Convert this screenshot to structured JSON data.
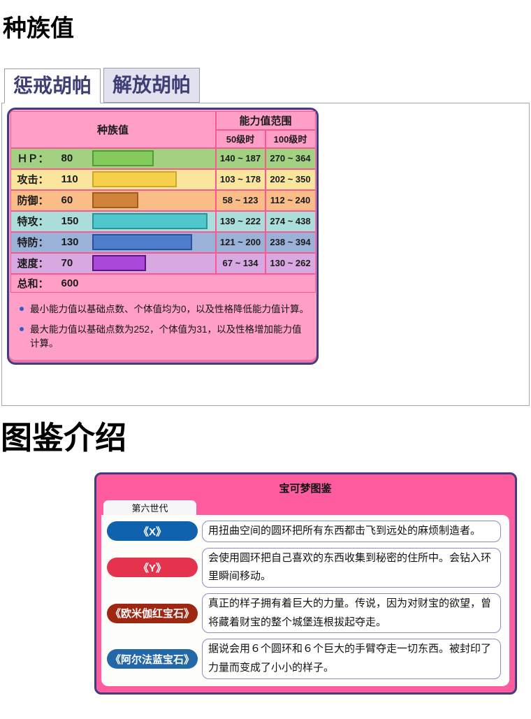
{
  "page": {
    "stats_heading": "种族值",
    "dex_heading": "图鉴介绍"
  },
  "form_tabs": [
    {
      "label": "惩戒胡帕",
      "active": true
    },
    {
      "label": "解放胡帕",
      "active": false
    }
  ],
  "stats_table": {
    "corner_header": "种族值",
    "range_header": "能力值范围",
    "col_lv50": "50级时",
    "col_lv100": "100级时",
    "rows": [
      {
        "label": "ＨＰ：",
        "value": 80,
        "lv50": "140 ~ 187",
        "lv100": "270 ~ 364",
        "row_bg": "#A2D182",
        "bar_fill": "#85CA5D",
        "bar_border": "#4F9B35"
      },
      {
        "label": "攻击：",
        "value": 110,
        "lv50": "103 ~ 178",
        "lv100": "202 ~ 350",
        "row_bg": "#FAE59C",
        "bar_fill": "#F5D04B",
        "bar_border": "#CDA62B"
      },
      {
        "label": "防御：",
        "value": 60,
        "lv50": "58 ~ 123",
        "lv100": "112 ~ 240",
        "row_bg": "#FBBD88",
        "bar_fill": "#D0843B",
        "bar_border": "#9F5E1E"
      },
      {
        "label": "特攻：",
        "value": 150,
        "lv50": "139 ~ 222",
        "lv100": "274 ~ 438",
        "row_bg": "#ABDDDB",
        "bar_fill": "#50C7CD",
        "bar_border": "#2A949B"
      },
      {
        "label": "特防：",
        "value": 130,
        "lv50": "121 ~ 200",
        "lv100": "238 ~ 394",
        "row_bg": "#9AB1D8",
        "bar_fill": "#4D7DCB",
        "bar_border": "#2B4F9E"
      },
      {
        "label": "速度：",
        "value": 70,
        "lv50": "67 ~ 134",
        "lv100": "130 ~ 262",
        "row_bg": "#D8A9E0",
        "bar_fill": "#A948DA",
        "bar_border": "#5E1580"
      }
    ],
    "total": {
      "label": "总和：",
      "value": 600
    },
    "notes": [
      "最小能力值以基础点数、个体值均为0，以及性格降低能力值计算。",
      "最大能力值以基础点数为252，个体值为31，以及性格增加能力值计算。"
    ]
  },
  "dex_table": {
    "title": "宝可梦图鉴",
    "generation_tab": "第六世代",
    "entries": [
      {
        "version": "《X》",
        "color": "#0F63AE",
        "text": "用扭曲空间的圆环把所有东西都击飞到远处的麻烦制造者。"
      },
      {
        "version": "《Y》",
        "color": "#E6334D",
        "text": "会使用圆环把自己喜欢的东西收集到秘密的住所中。会钻入环里瞬间移动。"
      },
      {
        "version": "《欧米伽红宝石》",
        "color": "#9F2611",
        "text": "真正的样子拥有着巨大的力量。传说，因为对财宝的欲望，曾将藏着财宝的整个城堡连根拔起夺走。"
      },
      {
        "version": "《阿尔法蓝宝石》",
        "color": "#2267A8",
        "text": "据说会用６个圆环和６个巨大的手臂夺走一切东西。被封印了力量而变成了小小的样子。"
      }
    ]
  },
  "colors": {
    "table_border": "#403D80",
    "stats_table_bg": "#FF9FC8",
    "cell_divider": "#FA5890",
    "dex_header_bg": "#FF5CA0",
    "tab_text": "#3E3E75",
    "note_bullet": "#2D5FC1"
  }
}
